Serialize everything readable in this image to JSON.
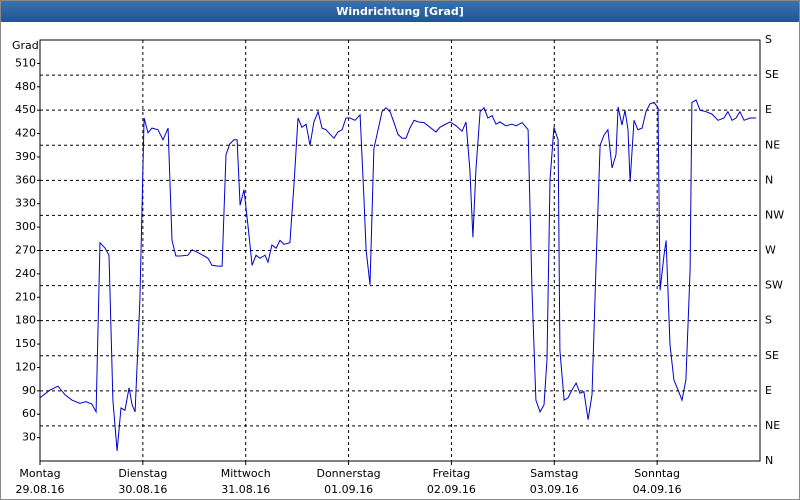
{
  "chart_data": {
    "type": "line",
    "title": "Windrichtung [Grad]",
    "y_label": "Grad",
    "color": "#0000cc",
    "xlim": [
      0,
      168
    ],
    "xticks": [
      {
        "value": 0,
        "label": "Montag"
      },
      {
        "value": 24,
        "label": "Dienstag"
      },
      {
        "value": 48,
        "label": "Mittwoch"
      },
      {
        "value": 72,
        "label": "Donnerstag"
      },
      {
        "value": 96,
        "label": "Freitag"
      },
      {
        "value": 120,
        "label": "Samstag"
      },
      {
        "value": 144,
        "label": "Sonntag"
      }
    ],
    "xtick_dates": [
      "29.08.16",
      "30.08.16",
      "31.08.16",
      "01.09.16",
      "02.09.16",
      "03.09.16",
      "04.09.16"
    ],
    "ylim": [
      0,
      540
    ],
    "yticks": [
      30,
      60,
      90,
      120,
      150,
      180,
      210,
      240,
      270,
      300,
      330,
      360,
      390,
      420,
      450,
      480,
      510
    ],
    "y2lim": [
      0,
      540
    ],
    "y2ticks": [
      {
        "value": 0,
        "label": "N"
      },
      {
        "value": 45,
        "label": "NE"
      },
      {
        "value": 90,
        "label": "E"
      },
      {
        "value": 135,
        "label": "SE"
      },
      {
        "value": 180,
        "label": "S"
      },
      {
        "value": 225,
        "label": "SW"
      },
      {
        "value": 270,
        "label": "W"
      },
      {
        "value": 315,
        "label": "NW"
      },
      {
        "value": 360,
        "label": "N"
      },
      {
        "value": 405,
        "label": "NE"
      },
      {
        "value": 450,
        "label": "E"
      },
      {
        "value": 495,
        "label": "SE"
      },
      {
        "value": 540,
        "label": "S"
      }
    ],
    "grid": true,
    "x": [
      0,
      2.3,
      4.2,
      5.8,
      7.5,
      9.3,
      10.7,
      12.1,
      13.1,
      14.0,
      15.2,
      16.1,
      17.0,
      18.0,
      18.9,
      19.8,
      20.8,
      21.5,
      22.2,
      23.3,
      24.3,
      25.2,
      26.1,
      27.5,
      28.7,
      29.9,
      30.8,
      31.7,
      32.7,
      34.5,
      35.5,
      37.3,
      39.2,
      40.1,
      41.5,
      42.5,
      43.4,
      44.3,
      45.3,
      46.0,
      46.7,
      47.6,
      48.5,
      49.5,
      50.4,
      51.3,
      52.5,
      53.2,
      54.1,
      55.1,
      56.0,
      56.9,
      58.3,
      59.3,
      60.2,
      61.1,
      62.1,
      63.0,
      63.9,
      64.9,
      65.8,
      66.7,
      67.7,
      68.6,
      69.5,
      70.5,
      71.4,
      72.3,
      73.5,
      74.7,
      75.6,
      76.1,
      77.0,
      77.9,
      78.9,
      79.8,
      80.7,
      81.7,
      82.6,
      83.5,
      84.5,
      85.4,
      86.3,
      87.3,
      88.2,
      89.6,
      91.0,
      92.4,
      93.3,
      94.3,
      95.7,
      97.1,
      98.5,
      99.4,
      100.3,
      101.0,
      101.7,
      102.7,
      103.6,
      104.5,
      105.5,
      106.4,
      107.3,
      108.7,
      110.1,
      111.1,
      112.5,
      113.9,
      114.8,
      115.7,
      116.7,
      117.6,
      118.3,
      119.0,
      119.9,
      120.9,
      121.3,
      122.3,
      123.2,
      124.1,
      125.1,
      126.0,
      126.9,
      127.9,
      128.8,
      129.7,
      130.7,
      131.6,
      132.5,
      133.5,
      134.4,
      134.9,
      135.8,
      136.5,
      137.2,
      137.7,
      138.6,
      139.5,
      140.5,
      141.4,
      142.3,
      143.3,
      144.2,
      144.7,
      145.6,
      146.1,
      147.0,
      147.9,
      148.9,
      149.8,
      150.7,
      151.7,
      152.1,
      153.1,
      154.0,
      155.4,
      156.8,
      158.2,
      159.6,
      160.5,
      161.5,
      162.4,
      163.3,
      164.3,
      165.7,
      167.1
    ],
    "values": [
      81,
      91,
      96,
      85,
      78,
      74,
      76,
      73,
      63,
      280,
      273,
      264,
      78,
      13,
      68,
      65,
      94,
      72,
      63,
      207,
      440,
      421,
      427,
      425,
      412,
      427,
      283,
      263,
      263,
      264,
      271,
      266,
      260,
      251,
      250,
      250,
      393,
      407,
      412,
      412,
      328,
      348,
      303,
      251,
      264,
      260,
      264,
      255,
      277,
      273,
      283,
      278,
      280,
      357,
      440,
      428,
      432,
      405,
      435,
      448,
      427,
      425,
      419,
      414,
      422,
      425,
      440,
      440,
      437,
      444,
      335,
      271,
      226,
      401,
      425,
      448,
      453,
      448,
      434,
      419,
      414,
      414,
      427,
      437,
      435,
      434,
      428,
      422,
      428,
      431,
      435,
      430,
      423,
      435,
      373,
      287,
      373,
      448,
      453,
      440,
      443,
      432,
      435,
      430,
      432,
      430,
      434,
      425,
      219,
      78,
      63,
      72,
      130,
      360,
      428,
      412,
      142,
      78,
      81,
      91,
      100,
      87,
      89,
      53,
      85,
      245,
      405,
      418,
      425,
      376,
      393,
      454,
      431,
      450,
      425,
      358,
      437,
      425,
      427,
      448,
      458,
      460,
      453,
      219,
      264,
      283,
      149,
      104,
      91,
      78,
      104,
      245,
      460,
      463,
      450,
      448,
      445,
      437,
      440,
      448,
      437,
      440,
      448,
      437,
      440,
      440
    ]
  }
}
